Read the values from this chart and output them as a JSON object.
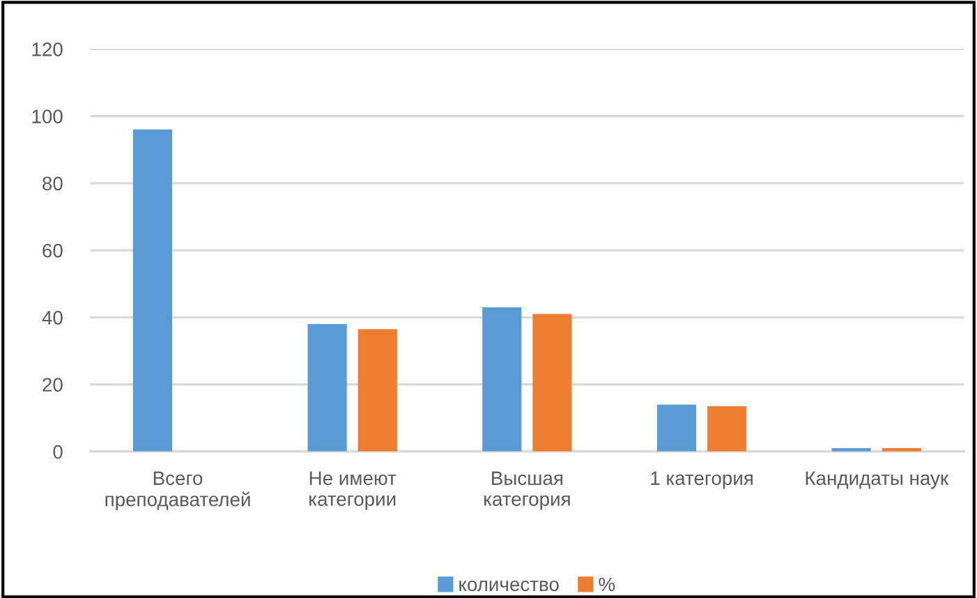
{
  "chart_data": {
    "type": "bar",
    "categories": [
      "Всего\nпреподавателей",
      "Не имеют\nкатегории",
      "Высшая\nкатегория",
      "1 категория",
      "Кандидаты наук"
    ],
    "series": [
      {
        "name": "количество",
        "color": "#5b9bd5",
        "values": [
          96,
          38,
          43,
          14,
          1
        ]
      },
      {
        "name": "%",
        "color": "#ed7d31",
        "values": [
          null,
          36.5,
          41,
          13.5,
          1
        ]
      }
    ],
    "ylim": [
      0,
      120
    ],
    "yticks": [
      0,
      20,
      40,
      60,
      80,
      100,
      120
    ],
    "grid": "y",
    "legend": "bottom"
  }
}
